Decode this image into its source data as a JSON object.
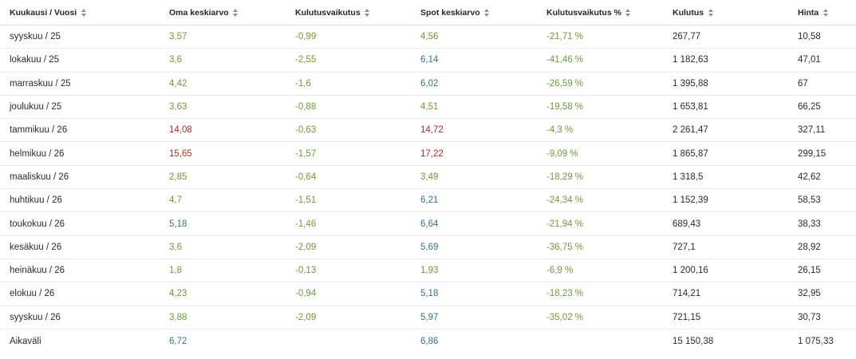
{
  "colors": {
    "green": "#6e9a3a",
    "blue": "#3a6f8e",
    "red": "#b22a22",
    "text": "#2b2b2b"
  },
  "columns": [
    {
      "label": "Kuukausi / Vuosi",
      "sort_icon": "sort-icon"
    },
    {
      "label": "Oma keskiarvo",
      "sort_icon": "sort-icon"
    },
    {
      "label": "Kulutusvaikutus",
      "sort_icon": "sort-icon"
    },
    {
      "label": "Spot keskiarvo",
      "sort_icon": "sort-icon"
    },
    {
      "label": "Kulutusvaikutus %",
      "sort_icon": "sort-icon"
    },
    {
      "label": "Kulutus",
      "sort_icon": "sort-icon"
    },
    {
      "label": "Hinta",
      "sort_icon": "sort-icon"
    }
  ],
  "rows": [
    {
      "month": "syyskuu / 25",
      "own_avg": "3,57",
      "own_color": "green",
      "effect": "-0,99",
      "spot_avg": "4,56",
      "spot_color": "green",
      "effect_pct": "-21,71 %",
      "consumption": "267,77",
      "price": "10,58"
    },
    {
      "month": "lokakuu / 25",
      "own_avg": "3,6",
      "own_color": "green",
      "effect": "-2,55",
      "spot_avg": "6,14",
      "spot_color": "blue",
      "effect_pct": "-41,46 %",
      "consumption": "1 182,63",
      "price": "47,01"
    },
    {
      "month": "marraskuu / 25",
      "own_avg": "4,42",
      "own_color": "green",
      "effect": "-1,6",
      "spot_avg": "6,02",
      "spot_color": "blue",
      "effect_pct": "-26,59 %",
      "consumption": "1 395,88",
      "price": "67"
    },
    {
      "month": "joulukuu / 25",
      "own_avg": "3,63",
      "own_color": "green",
      "effect": "-0,88",
      "spot_avg": "4,51",
      "spot_color": "green",
      "effect_pct": "-19,58 %",
      "consumption": "1 653,81",
      "price": "66,25"
    },
    {
      "month": "tammikuu / 26",
      "own_avg": "14,08",
      "own_color": "red",
      "effect": "-0,63",
      "spot_avg": "14,72",
      "spot_color": "red",
      "effect_pct": "-4,3 %",
      "consumption": "2 261,47",
      "price": "327,11"
    },
    {
      "month": "helmikuu / 26",
      "own_avg": "15,65",
      "own_color": "red",
      "effect": "-1,57",
      "spot_avg": "17,22",
      "spot_color": "red",
      "effect_pct": "-9,09 %",
      "consumption": "1 865,87",
      "price": "299,15"
    },
    {
      "month": "maaliskuu / 26",
      "own_avg": "2,85",
      "own_color": "green",
      "effect": "-0,64",
      "spot_avg": "3,49",
      "spot_color": "green",
      "effect_pct": "-18,29 %",
      "consumption": "1 318,5",
      "price": "42,62"
    },
    {
      "month": "huhtikuu / 26",
      "own_avg": "4,7",
      "own_color": "green",
      "effect": "-1,51",
      "spot_avg": "6,21",
      "spot_color": "blue",
      "effect_pct": "-24,34 %",
      "consumption": "1 152,39",
      "price": "58,53"
    },
    {
      "month": "toukokuu / 26",
      "own_avg": "5,18",
      "own_color": "blue",
      "effect": "-1,46",
      "spot_avg": "6,64",
      "spot_color": "blue",
      "effect_pct": "-21,94 %",
      "consumption": "689,43",
      "price": "38,33"
    },
    {
      "month": "kesäkuu / 26",
      "own_avg": "3,6",
      "own_color": "green",
      "effect": "-2,09",
      "spot_avg": "5,69",
      "spot_color": "blue",
      "effect_pct": "-36,75 %",
      "consumption": "727,1",
      "price": "28,92"
    },
    {
      "month": "heinäkuu / 26",
      "own_avg": "1,8",
      "own_color": "green",
      "effect": "-0,13",
      "spot_avg": "1,93",
      "spot_color": "green",
      "effect_pct": "-6,9 %",
      "consumption": "1 200,16",
      "price": "26,15"
    },
    {
      "month": "elokuu / 26",
      "own_avg": "4,23",
      "own_color": "green",
      "effect": "-0,94",
      "spot_avg": "5,18",
      "spot_color": "blue",
      "effect_pct": "-18,23 %",
      "consumption": "714,21",
      "price": "32,95"
    },
    {
      "month": "syyskuu / 26",
      "own_avg": "3,88",
      "own_color": "green",
      "effect": "-2,09",
      "spot_avg": "5,97",
      "spot_color": "blue",
      "effect_pct": "-35,02 %",
      "consumption": "721,15",
      "price": "30,73"
    }
  ],
  "footer": {
    "label": "Aikaväli",
    "own_avg": "6,72",
    "own_color": "blue",
    "spot_avg": "6,86",
    "spot_color": "blue",
    "consumption": "15 150,38",
    "price": "1 075,33"
  }
}
